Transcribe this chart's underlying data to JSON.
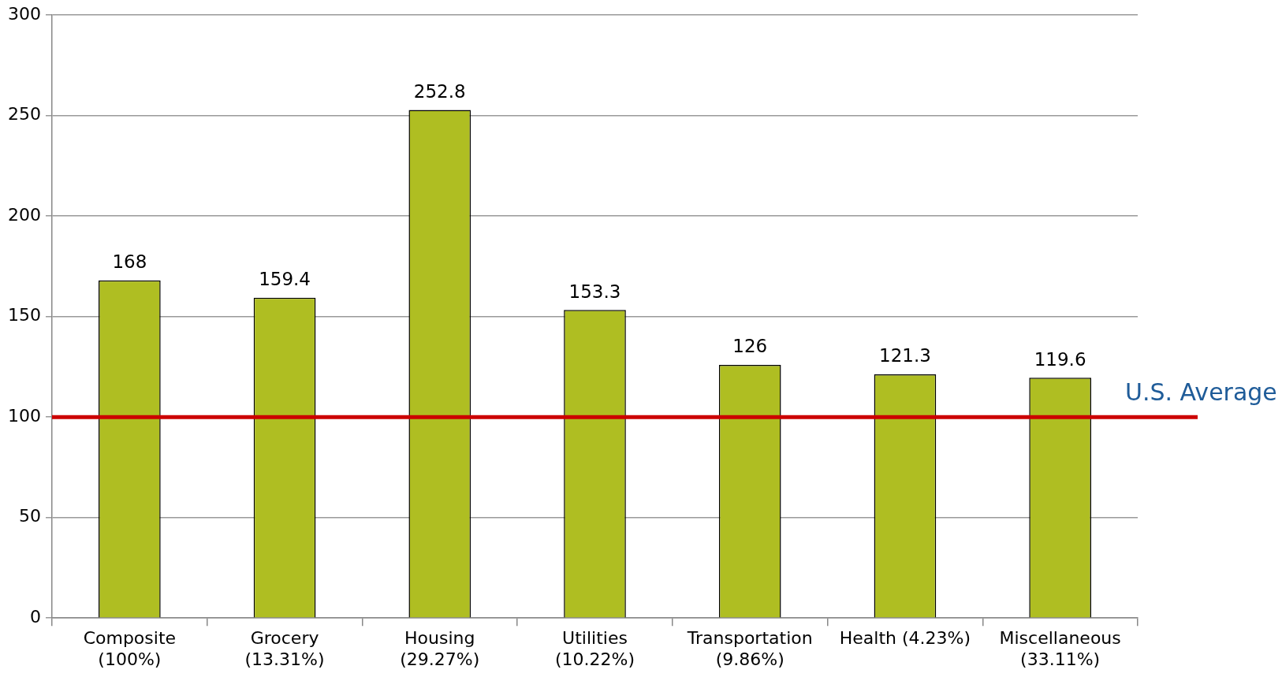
{
  "chart_data": {
    "type": "bar",
    "categories": [
      "Composite\n(100%)",
      "Grocery\n(13.31%)",
      "Housing\n(29.27%)",
      "Utilities\n(10.22%)",
      "Transportation\n(9.86%)",
      "Health (4.23%)",
      "Miscellaneous\n(33.11%)"
    ],
    "values": [
      168,
      159.4,
      252.8,
      153.3,
      126,
      121.3,
      119.6
    ],
    "color": "#afbe22",
    "ylim": [
      0,
      300
    ],
    "yticks": [
      0,
      50,
      100,
      150,
      200,
      250,
      300
    ],
    "grid": "y",
    "data_labels": true,
    "legend": false,
    "ref_lines": [
      {
        "axis": "y",
        "value": 100,
        "label": "U.S. Average",
        "color": "#cc0000"
      }
    ]
  }
}
